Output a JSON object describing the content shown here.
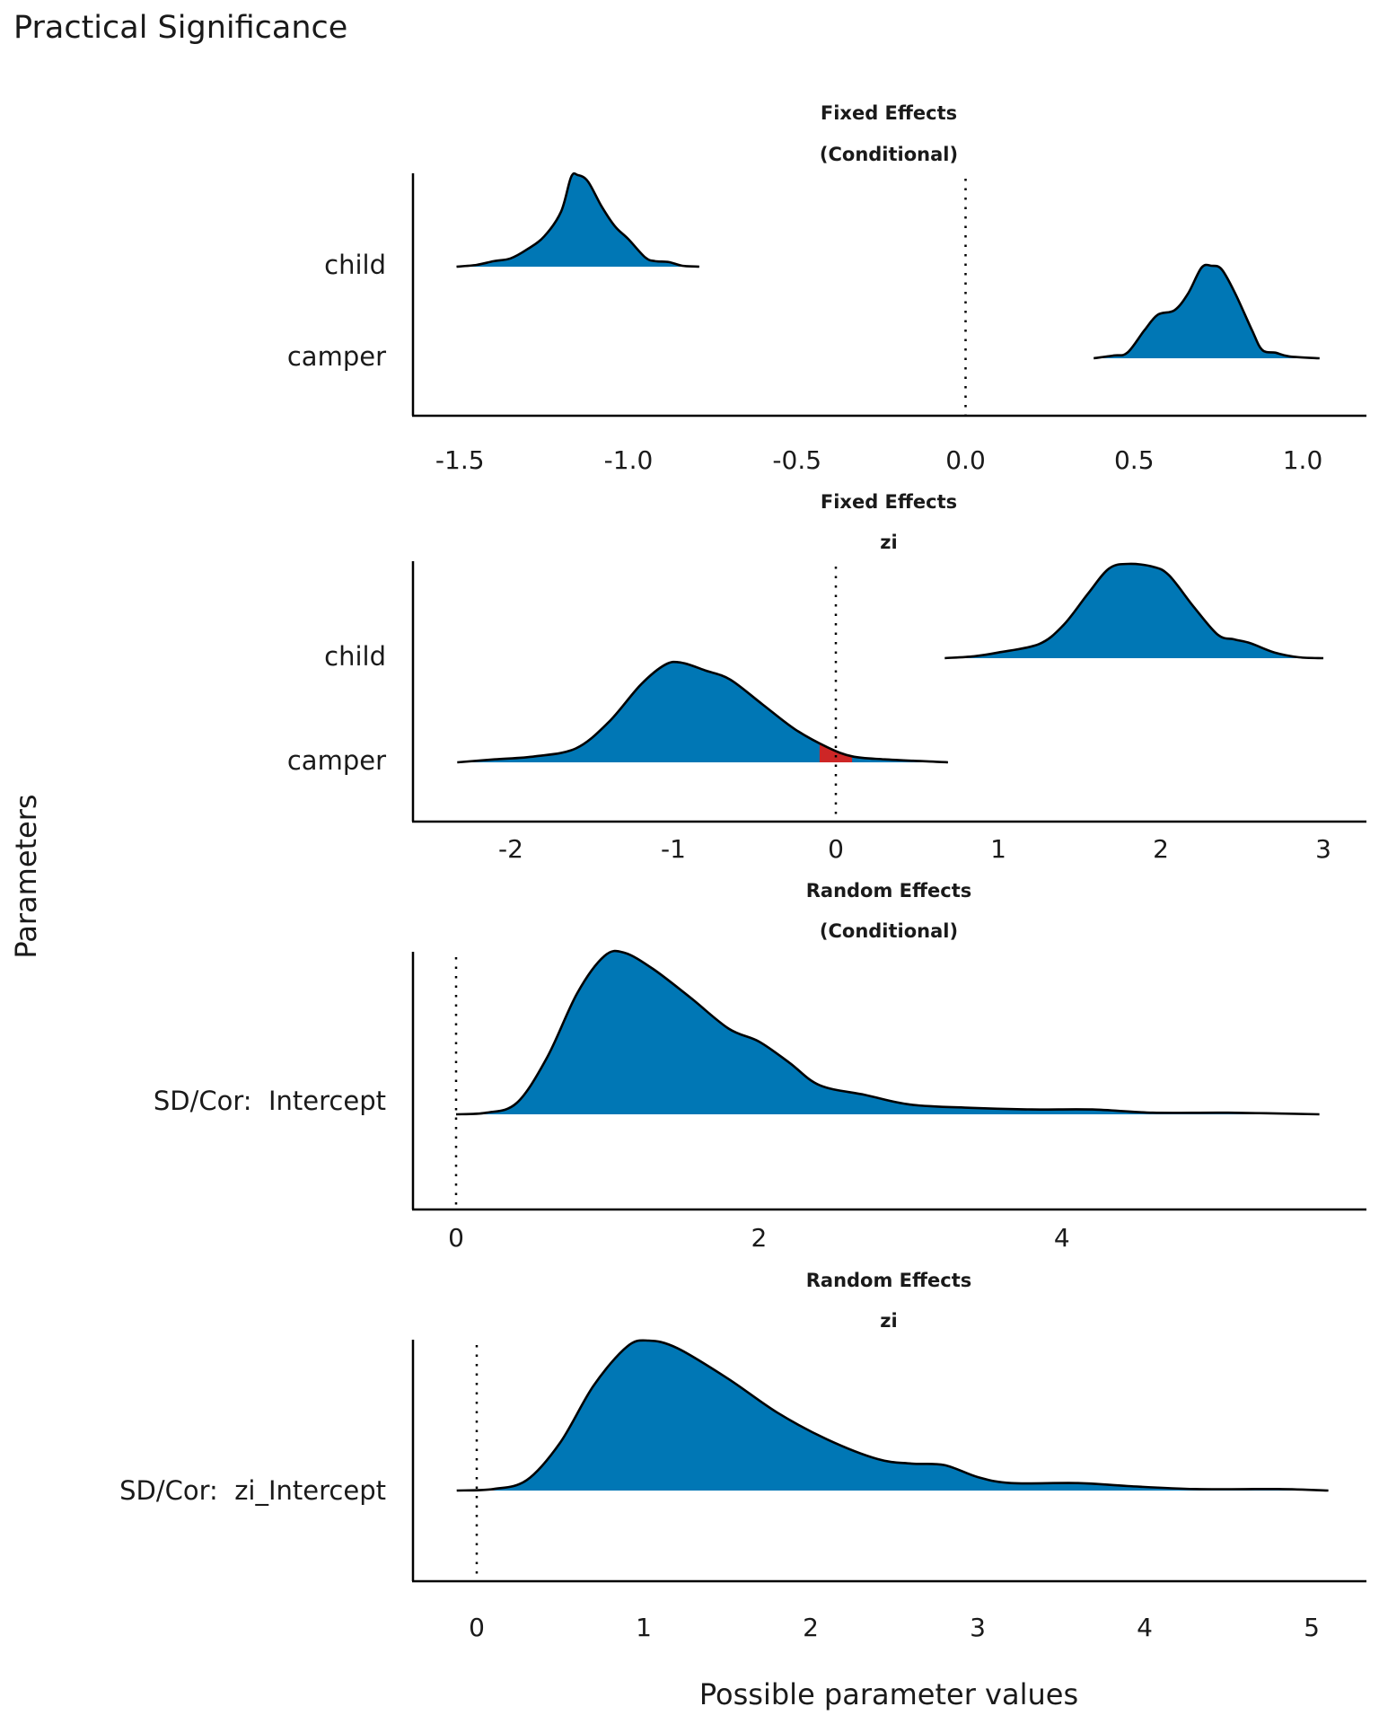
{
  "chart_data": {
    "type": "area",
    "title": "Practical Significance",
    "xlabel": "Possible parameter values",
    "ylabel": "Parameters",
    "colors": {
      "fill": "#0077B5",
      "rope_fill": "#CD2626",
      "outline": "#000000",
      "reference_line": "#000000"
    },
    "panels": [
      {
        "strip": [
          "Fixed Effects",
          "(Conditional)"
        ],
        "xlim": [
          -1.6,
          1.2
        ],
        "xticks": [
          -1.5,
          -1.0,
          -0.5,
          0.0,
          0.5,
          1.0
        ],
        "xtick_labels": [
          "-1.5",
          "-1.0",
          "-0.5",
          "0.0",
          "0.5",
          "1.0"
        ],
        "reference_line": 0,
        "parameters": [
          {
            "name": "child",
            "rope_region": null,
            "density": [
              [
                -1.51,
                0
              ],
              [
                -1.45,
                0.02
              ],
              [
                -1.4,
                0.06
              ],
              [
                -1.35,
                0.09
              ],
              [
                -1.3,
                0.19
              ],
              [
                -1.25,
                0.33
              ],
              [
                -1.2,
                0.6
              ],
              [
                -1.17,
                0.98
              ],
              [
                -1.15,
                1.0
              ],
              [
                -1.12,
                0.93
              ],
              [
                -1.08,
                0.66
              ],
              [
                -1.04,
                0.44
              ],
              [
                -1.0,
                0.3
              ],
              [
                -0.95,
                0.1
              ],
              [
                -0.92,
                0.06
              ],
              [
                -0.88,
                0.05
              ],
              [
                -0.84,
                0.01
              ],
              [
                -0.79,
                0
              ]
            ]
          },
          {
            "name": "camper",
            "rope_region": null,
            "density": [
              [
                0.38,
                0
              ],
              [
                0.44,
                0.03
              ],
              [
                0.48,
                0.06
              ],
              [
                0.53,
                0.3
              ],
              [
                0.57,
                0.47
              ],
              [
                0.62,
                0.52
              ],
              [
                0.66,
                0.7
              ],
              [
                0.7,
                0.98
              ],
              [
                0.73,
                1.0
              ],
              [
                0.76,
                0.96
              ],
              [
                0.8,
                0.7
              ],
              [
                0.85,
                0.3
              ],
              [
                0.88,
                0.09
              ],
              [
                0.92,
                0.06
              ],
              [
                0.96,
                0.02
              ],
              [
                1.05,
                0
              ]
            ]
          }
        ]
      },
      {
        "strip": [
          "Fixed Effects",
          "zi"
        ],
        "xlim": [
          -2.6,
          3.3
        ],
        "xticks": [
          -2,
          -1,
          0,
          1,
          2,
          3
        ],
        "xtick_labels": [
          "-2",
          "-1",
          "0",
          "1",
          "2",
          "3"
        ],
        "reference_line": 0,
        "parameters": [
          {
            "name": "child",
            "rope_region": null,
            "density": [
              [
                0.67,
                0
              ],
              [
                0.85,
                0.02
              ],
              [
                1.0,
                0.06
              ],
              [
                1.25,
                0.15
              ],
              [
                1.4,
                0.35
              ],
              [
                1.55,
                0.68
              ],
              [
                1.68,
                0.95
              ],
              [
                1.8,
                1.0
              ],
              [
                1.95,
                0.97
              ],
              [
                2.05,
                0.88
              ],
              [
                2.2,
                0.55
              ],
              [
                2.35,
                0.25
              ],
              [
                2.45,
                0.2
              ],
              [
                2.55,
                0.16
              ],
              [
                2.7,
                0.06
              ],
              [
                2.85,
                0.01
              ],
              [
                3.0,
                0
              ]
            ]
          },
          {
            "name": "camper",
            "rope_region": [
              -0.1,
              0.1
            ],
            "density": [
              [
                -2.33,
                0
              ],
              [
                -2.1,
                0.03
              ],
              [
                -1.85,
                0.06
              ],
              [
                -1.6,
                0.14
              ],
              [
                -1.4,
                0.4
              ],
              [
                -1.2,
                0.78
              ],
              [
                -1.05,
                0.98
              ],
              [
                -0.95,
                1.0
              ],
              [
                -0.8,
                0.92
              ],
              [
                -0.65,
                0.83
              ],
              [
                -0.45,
                0.58
              ],
              [
                -0.25,
                0.33
              ],
              [
                -0.05,
                0.15
              ],
              [
                0.1,
                0.06
              ],
              [
                0.3,
                0.03
              ],
              [
                0.69,
                0
              ]
            ]
          }
        ]
      },
      {
        "strip": [
          "Random Effects",
          "(Conditional)"
        ],
        "xlim": [
          -0.3,
          5.7
        ],
        "xticks": [
          0,
          2,
          4
        ],
        "xtick_labels": [
          "0",
          "2",
          "4"
        ],
        "reference_line": 0,
        "parameters": [
          {
            "name": "SD/Cor:  Intercept",
            "rope_region": null,
            "density": [
              [
                0,
                0
              ],
              [
                0.2,
                0.01
              ],
              [
                0.4,
                0.07
              ],
              [
                0.6,
                0.35
              ],
              [
                0.8,
                0.75
              ],
              [
                0.98,
                0.98
              ],
              [
                1.11,
                1.0
              ],
              [
                1.3,
                0.9
              ],
              [
                1.55,
                0.72
              ],
              [
                1.8,
                0.53
              ],
              [
                2.0,
                0.45
              ],
              [
                2.2,
                0.32
              ],
              [
                2.4,
                0.18
              ],
              [
                2.7,
                0.12
              ],
              [
                3.0,
                0.06
              ],
              [
                3.4,
                0.04
              ],
              [
                3.8,
                0.03
              ],
              [
                4.2,
                0.03
              ],
              [
                4.6,
                0.01
              ],
              [
                5.1,
                0.01
              ],
              [
                5.7,
                0
              ]
            ]
          }
        ]
      },
      {
        "strip": [
          "Random Effects",
          "zi"
        ],
        "xlim": [
          -0.4,
          5.3
        ],
        "xticks": [
          0,
          1,
          2,
          3,
          4,
          5
        ],
        "xtick_labels": [
          "0",
          "1",
          "2",
          "3",
          "4",
          "5"
        ],
        "reference_line": 0,
        "parameters": [
          {
            "name": "SD/Cor:  zi_Intercept",
            "rope_region": [
              -0.1,
              0.1
            ],
            "density": [
              [
                -0.12,
                0
              ],
              [
                0.1,
                0.01
              ],
              [
                0.3,
                0.07
              ],
              [
                0.5,
                0.32
              ],
              [
                0.7,
                0.7
              ],
              [
                0.9,
                0.96
              ],
              [
                1.03,
                1.0
              ],
              [
                1.2,
                0.95
              ],
              [
                1.5,
                0.75
              ],
              [
                1.8,
                0.52
              ],
              [
                2.1,
                0.34
              ],
              [
                2.4,
                0.21
              ],
              [
                2.6,
                0.18
              ],
              [
                2.8,
                0.17
              ],
              [
                3.0,
                0.09
              ],
              [
                3.2,
                0.05
              ],
              [
                3.6,
                0.05
              ],
              [
                3.9,
                0.03
              ],
              [
                4.3,
                0.01
              ],
              [
                4.8,
                0.01
              ],
              [
                5.1,
                0
              ]
            ]
          }
        ]
      }
    ]
  }
}
